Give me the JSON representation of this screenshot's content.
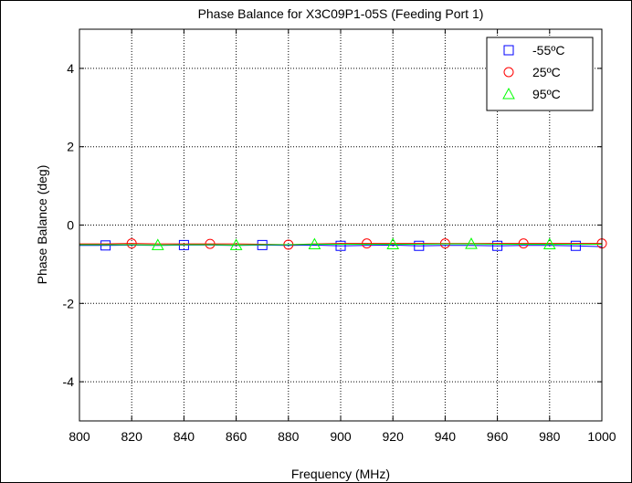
{
  "chart_data": {
    "type": "line",
    "title": "Phase Balance for X3C09P1-05S (Feeding Port 1)",
    "xlabel": "Frequency (MHz)",
    "ylabel": "Phase Balance (deg)",
    "xlim": [
      800,
      1000
    ],
    "ylim": [
      -5,
      5
    ],
    "xticks": [
      800,
      820,
      840,
      860,
      880,
      900,
      920,
      940,
      960,
      980,
      1000
    ],
    "yticks": [
      -4,
      -2,
      0,
      2,
      4
    ],
    "grid": true,
    "legend_position": "top-right",
    "series": [
      {
        "name": "-55ºC",
        "color": "#0000ff",
        "marker": "square",
        "x": [
          800,
          810,
          820,
          830,
          840,
          850,
          860,
          870,
          880,
          890,
          900,
          910,
          920,
          930,
          940,
          950,
          960,
          970,
          980,
          990,
          1000
        ],
        "y": [
          -0.52,
          -0.52,
          -0.51,
          -0.52,
          -0.51,
          -0.51,
          -0.52,
          -0.51,
          -0.52,
          -0.51,
          -0.53,
          -0.52,
          -0.51,
          -0.53,
          -0.52,
          -0.52,
          -0.53,
          -0.52,
          -0.52,
          -0.53,
          -0.55
        ],
        "marker_x": [
          810,
          840,
          870,
          900,
          930,
          960,
          990
        ]
      },
      {
        "name": "25ºC",
        "color": "#ff0000",
        "marker": "circle",
        "x": [
          800,
          810,
          820,
          830,
          840,
          850,
          860,
          870,
          880,
          890,
          900,
          910,
          920,
          930,
          940,
          950,
          960,
          970,
          980,
          990,
          1000
        ],
        "y": [
          -0.48,
          -0.48,
          -0.47,
          -0.48,
          -0.48,
          -0.48,
          -0.48,
          -0.49,
          -0.5,
          -0.48,
          -0.47,
          -0.47,
          -0.47,
          -0.47,
          -0.47,
          -0.47,
          -0.47,
          -0.47,
          -0.47,
          -0.47,
          -0.47
        ],
        "marker_x": [
          820,
          850,
          880,
          910,
          940,
          970,
          1000
        ]
      },
      {
        "name": "95ºC",
        "color": "#00ff00",
        "marker": "triangle",
        "x": [
          800,
          810,
          820,
          830,
          840,
          850,
          860,
          870,
          880,
          890,
          900,
          910,
          920,
          930,
          940,
          950,
          960,
          970,
          980,
          990,
          1000
        ],
        "y": [
          -0.5,
          -0.5,
          -0.5,
          -0.51,
          -0.5,
          -0.5,
          -0.51,
          -0.5,
          -0.5,
          -0.49,
          -0.49,
          -0.49,
          -0.49,
          -0.49,
          -0.48,
          -0.48,
          -0.49,
          -0.49,
          -0.49,
          -0.49,
          -0.49
        ],
        "marker_x": [
          830,
          860,
          890,
          920,
          950,
          980
        ]
      }
    ]
  }
}
